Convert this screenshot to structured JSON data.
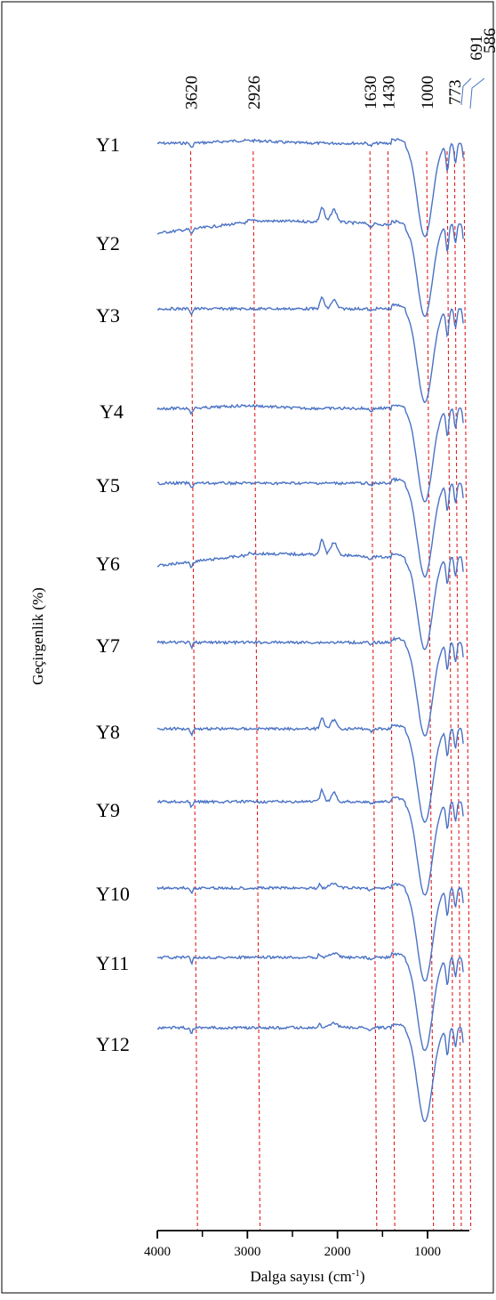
{
  "chart_data": {
    "type": "line",
    "title": "",
    "xlabel": "Dalga sayısı (cm",
    "xlabel_superscript": "-1",
    "xlabel_suffix": ")",
    "ylabel": "Geçirgenlik (%)",
    "xlim": [
      4000,
      600
    ],
    "x_reversed": true,
    "x_ticks": [
      4000,
      3000,
      2000,
      1000
    ],
    "x_minor_ticks": [
      3500,
      2500,
      1500
    ],
    "x_tick_labels": [
      "4000",
      "3000",
      "2000",
      "1000"
    ],
    "stacked_offset": true,
    "grid": false,
    "reference_lines": [
      {
        "x": 3620,
        "label": "3620",
        "color": "#e02020"
      },
      {
        "x": 2926,
        "label": "2926",
        "color": "#e02020"
      },
      {
        "x": 1630,
        "label": "1630",
        "color": "#e02020"
      },
      {
        "x": 1430,
        "label": "1430",
        "color": "#e02020"
      },
      {
        "x": 1000,
        "label": "1000",
        "color": "#e02020"
      },
      {
        "x": 773,
        "label": "773",
        "color": "#e02020"
      },
      {
        "x": 691,
        "label": "691",
        "color": "#e02020"
      },
      {
        "x": 586,
        "label": "586",
        "color": "#e02020"
      }
    ],
    "line_color": "#4a72c4",
    "series": [
      {
        "name": "Y1",
        "variant": 0
      },
      {
        "name": "Y2",
        "variant": 1
      },
      {
        "name": "Y3",
        "variant": 2
      },
      {
        "name": "Y4",
        "variant": 0
      },
      {
        "name": "Y5",
        "variant": 3
      },
      {
        "name": "Y6",
        "variant": 1
      },
      {
        "name": "Y7",
        "variant": 3
      },
      {
        "name": "Y8",
        "variant": 2
      },
      {
        "name": "Y9",
        "variant": 2
      },
      {
        "name": "Y10",
        "variant": 4
      },
      {
        "name": "Y11",
        "variant": 4
      },
      {
        "name": "Y12",
        "variant": 4
      }
    ]
  }
}
